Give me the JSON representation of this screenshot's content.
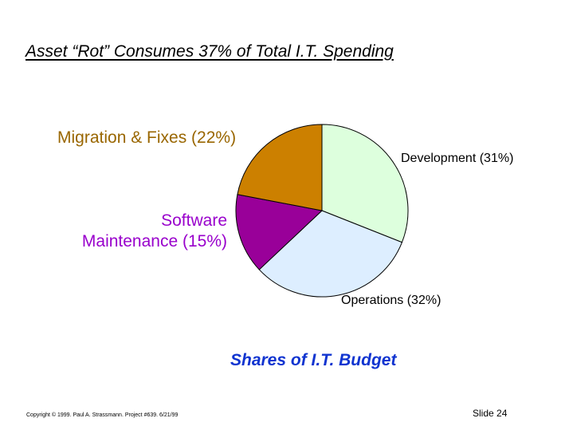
{
  "slide": {
    "title": "Asset “Rot” Consumes 37% of Total I.T. Spending",
    "caption": "Shares of I.T. Budget",
    "copyright": "Copyright © 1999.  Paul A. Strassmann. Project #639.      6/21/99",
    "slide_number": "Slide 24"
  },
  "chart_data": {
    "type": "pie",
    "title": "",
    "slices": [
      {
        "label": "Development (31%)",
        "value": 31,
        "color": "#ddffdd",
        "label_color": "#000000"
      },
      {
        "label": "Operations (32%)",
        "value": 32,
        "color": "#ddeeff",
        "label_color": "#000000"
      },
      {
        "label_line1": "Software",
        "label_line2": "Maintenance (15%)",
        "value": 15,
        "color": "#990099",
        "label_color": "#9900cc"
      },
      {
        "label": "Migration & Fixes (22%)",
        "value": 22,
        "color": "#cc8000",
        "label_color": "#996600"
      }
    ],
    "start": "12 o'clock",
    "direction": "clockwise"
  }
}
